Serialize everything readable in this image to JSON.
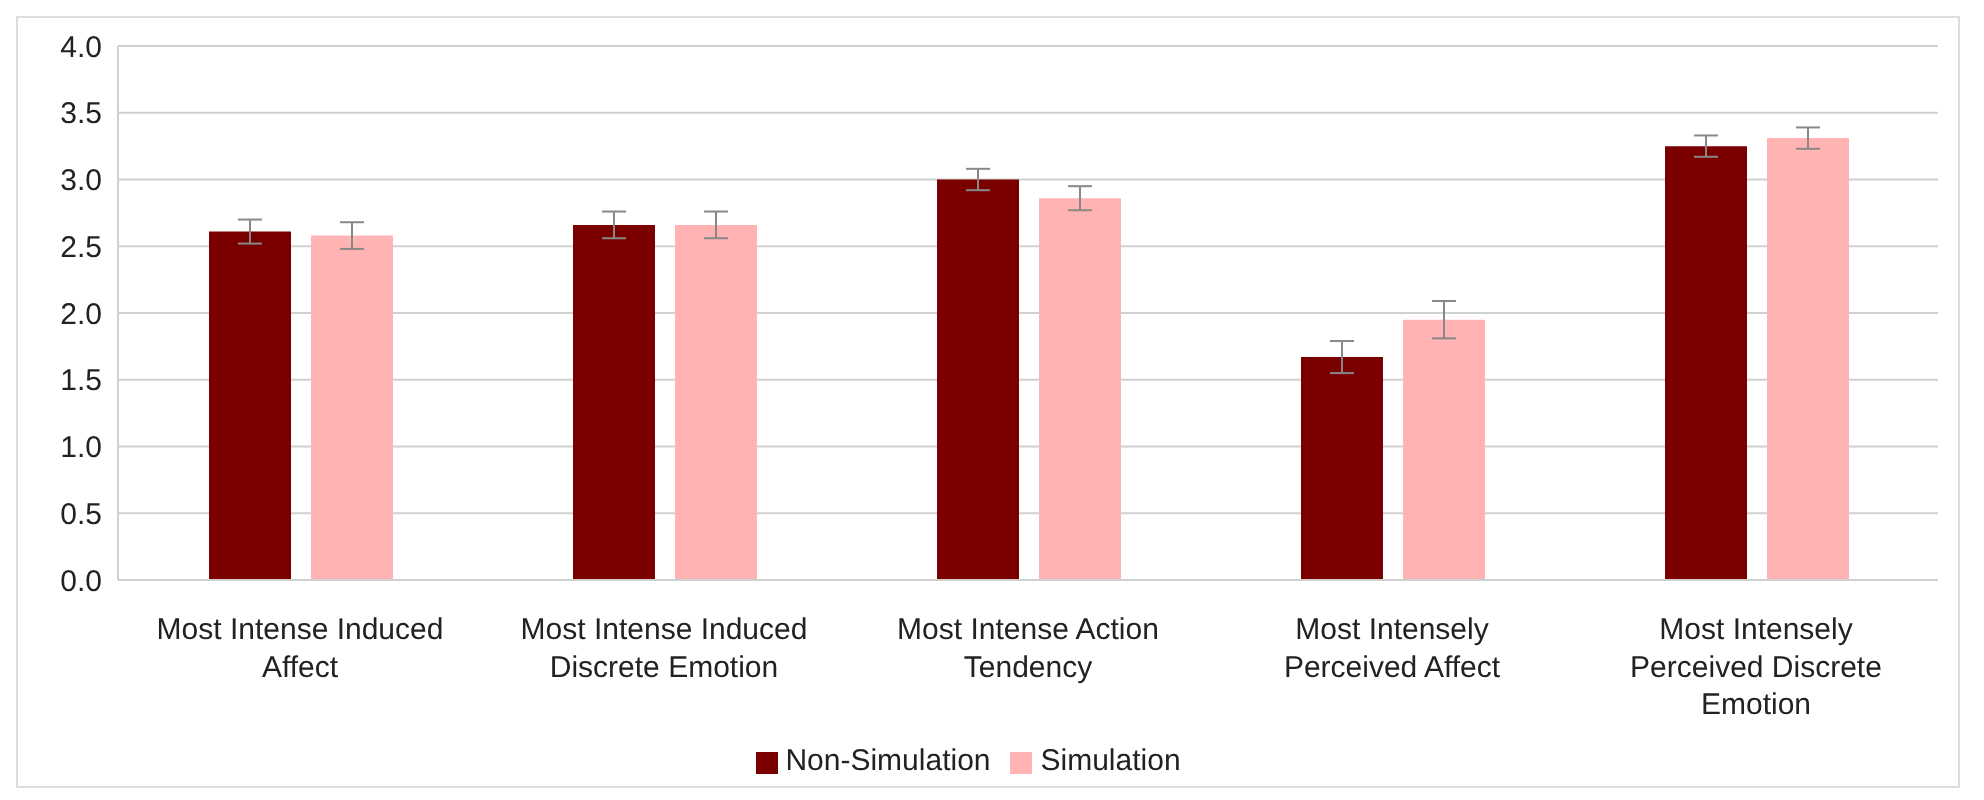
{
  "chart_data": {
    "type": "bar",
    "categories": [
      "Most Intense Induced Affect",
      "Most Intense Induced Discrete Emotion",
      "Most Intense Action Tendency",
      "Most Intensely Perceived Affect",
      "Most Intensely Perceived Discrete Emotion"
    ],
    "series": [
      {
        "name": "Non-Simulation",
        "color": "#7a0000",
        "values": [
          2.61,
          2.66,
          3.0,
          1.67,
          3.25
        ],
        "errors": [
          0.09,
          0.1,
          0.08,
          0.12,
          0.08
        ]
      },
      {
        "name": "Simulation",
        "color": "#ffb3b3",
        "values": [
          2.58,
          2.66,
          2.86,
          1.95,
          3.31
        ],
        "errors": [
          0.1,
          0.1,
          0.09,
          0.14,
          0.08
        ]
      }
    ],
    "ylim": [
      0,
      4
    ],
    "yticks": [
      {
        "value": 0,
        "label": "0.0"
      },
      0.5,
      {
        "value": 1,
        "label": "1.0"
      },
      1.5,
      {
        "value": 2,
        "label": "2.0"
      },
      2.5,
      {
        "value": 3,
        "label": "3.0"
      },
      3.5,
      {
        "value": 4,
        "label": "4.0"
      }
    ],
    "grid": "y",
    "legend": "bottom"
  }
}
